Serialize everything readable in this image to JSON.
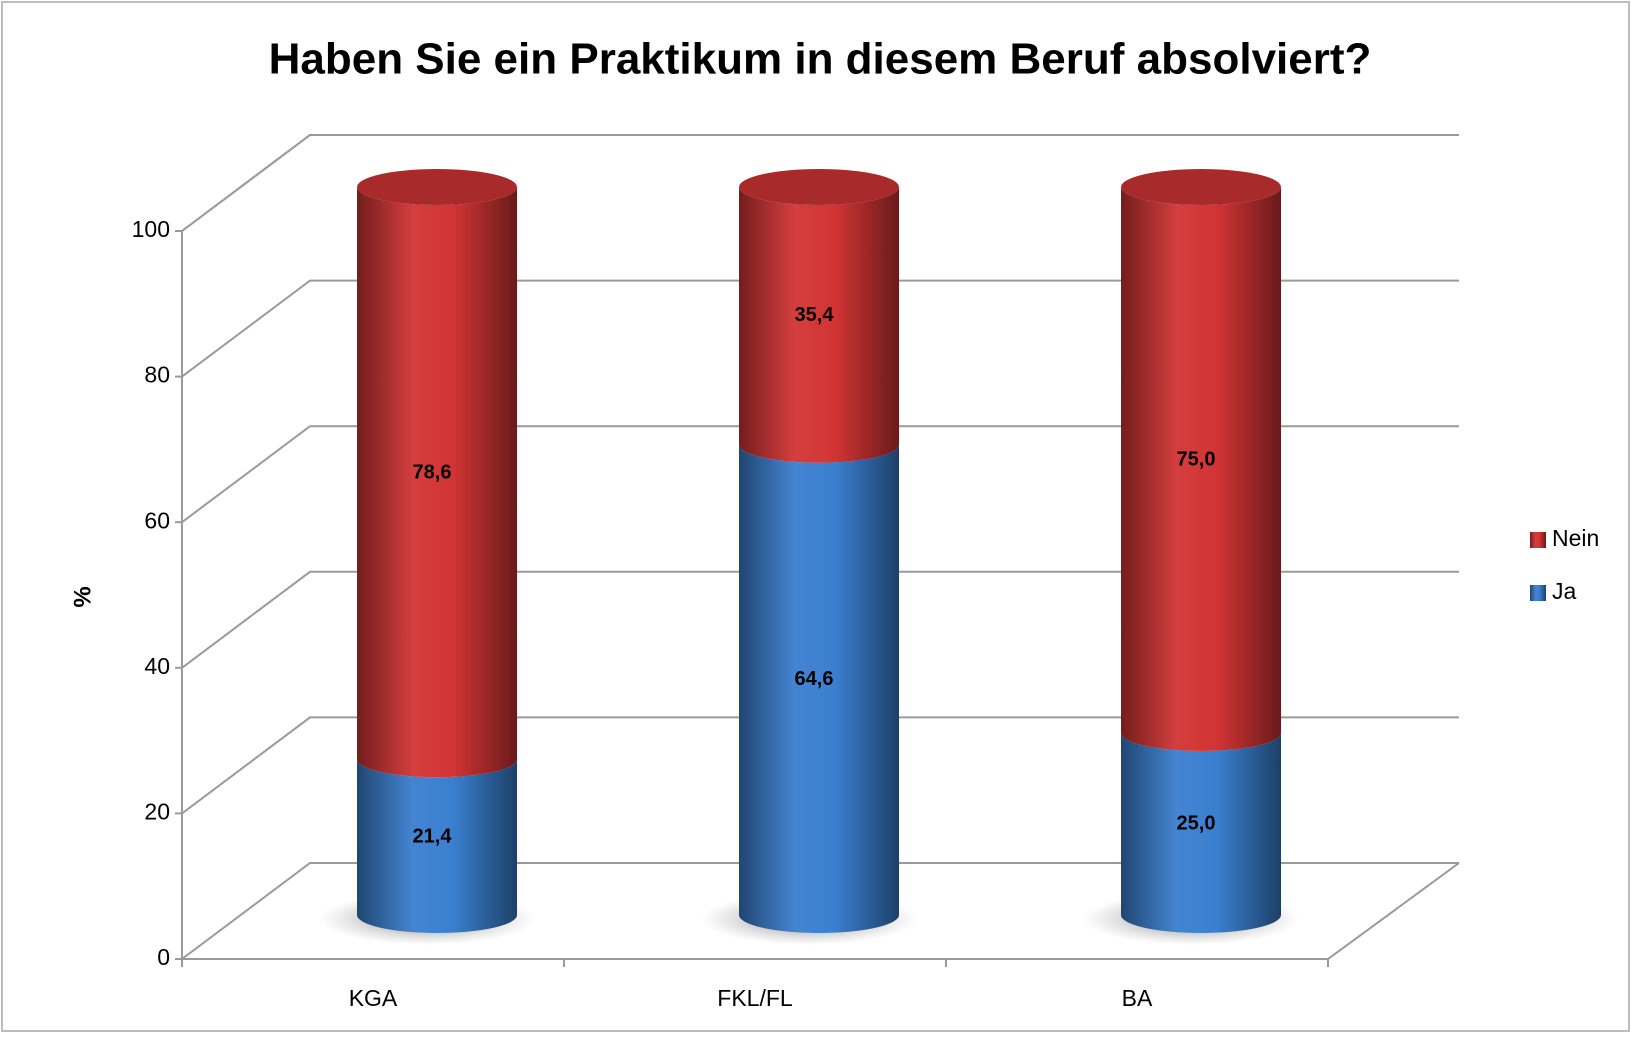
{
  "chart_data": {
    "type": "bar3d_stacked_cylinder",
    "title": "Haben Sie ein Praktikum in diesem Beruf absolviert?",
    "y_label": "%",
    "categories": [
      "KGA",
      "FKL/FL",
      "BA"
    ],
    "series": [
      {
        "name": "Ja",
        "color": "#3a7fd0",
        "values": [
          21.4,
          64.6,
          25.0
        ],
        "value_labels": [
          "21,4",
          "64,6",
          "25,0"
        ]
      },
      {
        "name": "Nein",
        "color": "#d23434",
        "values": [
          78.6,
          35.4,
          75.0
        ],
        "value_labels": [
          "78,6",
          "35,4",
          "75,0"
        ]
      }
    ],
    "ylim": [
      0,
      100
    ],
    "yticks": [
      0,
      20,
      40,
      60,
      80,
      100
    ],
    "grid": true,
    "legend": "right"
  }
}
